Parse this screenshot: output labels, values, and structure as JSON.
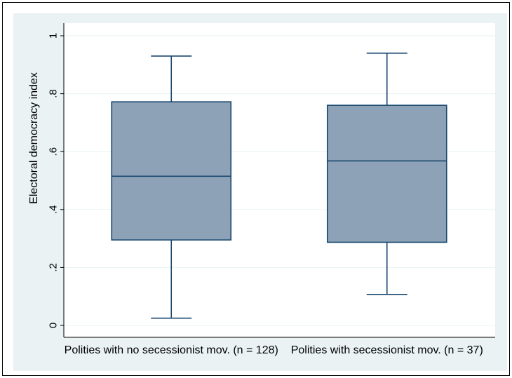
{
  "chart_data": {
    "type": "box",
    "title": "",
    "ylabel": "Electoral democracy index",
    "xlabel": "",
    "ylim": [
      0,
      1
    ],
    "yticks": [
      0,
      0.2,
      0.4,
      0.6,
      0.8,
      1
    ],
    "ytick_labels": [
      "0",
      ".2",
      ".4",
      ".6",
      ".8",
      "1"
    ],
    "grid": true,
    "categories": [
      "Polities with no secessionist mov. (n = 128)",
      "Polities with secessionist mov. (n = 37)"
    ],
    "boxes": [
      {
        "whisker_low": 0.025,
        "q1": 0.295,
        "median": 0.515,
        "q3": 0.772,
        "whisker_high": 0.93
      },
      {
        "whisker_low": 0.107,
        "q1": 0.287,
        "median": 0.568,
        "q3": 0.76,
        "whisker_high": 0.94
      }
    ],
    "colors": {
      "box_fill": "#8da2b6",
      "box_stroke": "#1a476f",
      "plot_background": "#eaf2f3",
      "plot_area": "#ffffff",
      "grid": "#eaf2f3"
    }
  }
}
